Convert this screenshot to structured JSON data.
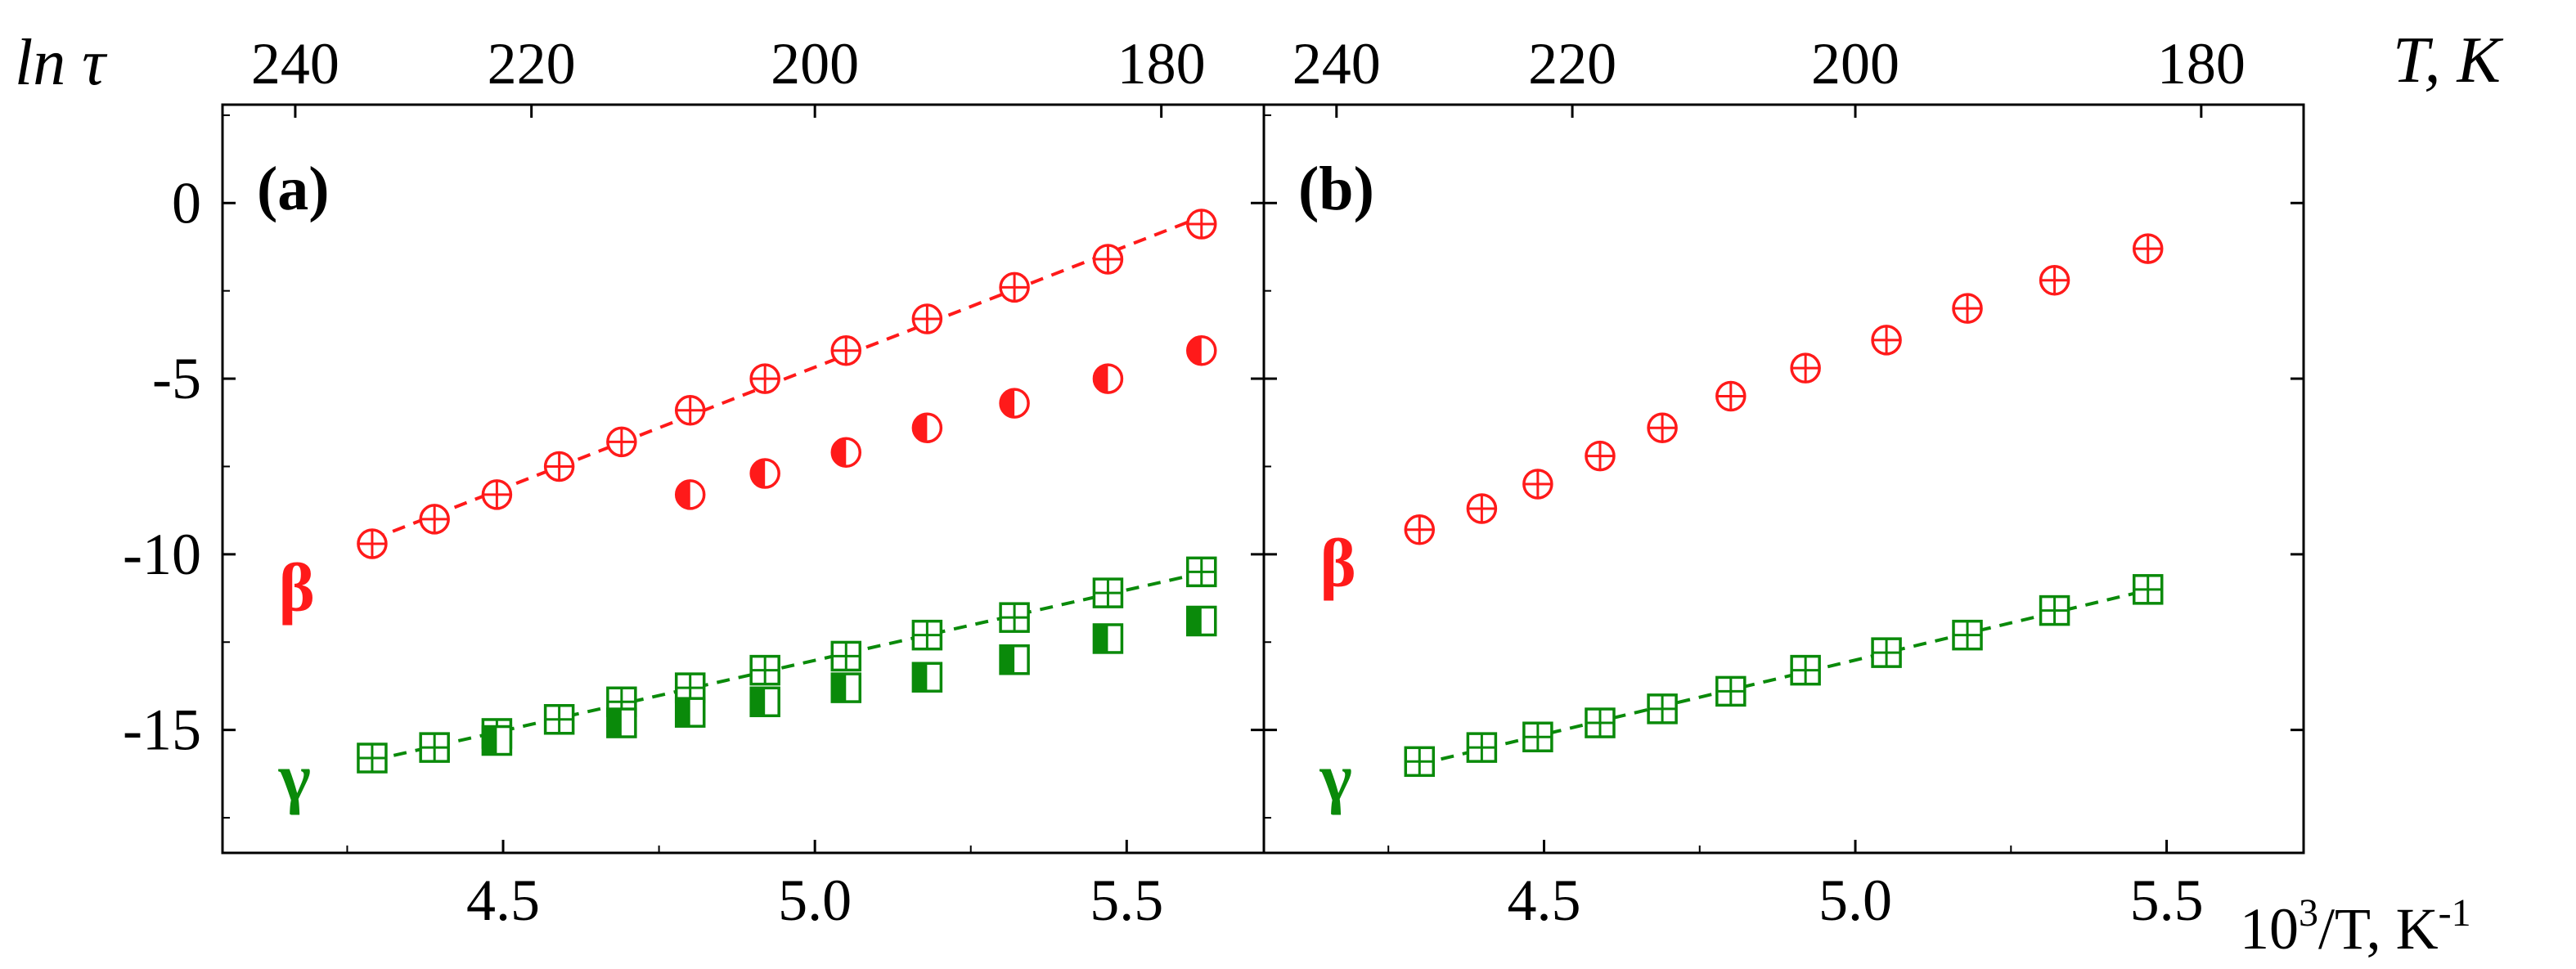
{
  "colors": {
    "beta": "#ff1a1a",
    "gamma": "#0a8a0a",
    "axis": "#000000"
  },
  "y_axis_title": "ln τ",
  "x_axis_title": "10³/T, K⁻¹",
  "x_axis_title_parts": {
    "base": "10",
    "sup": "3",
    "mid": "/T, K",
    "sup2": "-1"
  },
  "top_axis_title": "T, K",
  "chart_data": [
    {
      "type": "scatter",
      "panel_label": "(a)",
      "xlim": [
        4.05,
        5.72
      ],
      "ylim": [
        -18.5,
        2.8
      ],
      "x_ticks": [
        4.5,
        5.0,
        5.5
      ],
      "x_tick_labels": [
        "4.5",
        "5.0",
        "5.5"
      ],
      "y_ticks": [
        0,
        -5,
        -10,
        -15
      ],
      "y_tick_labels": [
        "0",
        "-5",
        "-10",
        "-15"
      ],
      "top_ticks": [
        240,
        220,
        200,
        180
      ],
      "top_tick_labels": [
        "240",
        "220",
        "200",
        "180"
      ],
      "series_labels": [
        {
          "text": "β",
          "color": "#ff1a1a",
          "x": 4.14,
          "y": -11.6
        },
        {
          "text": "γ",
          "color": "#0a8a0a",
          "x": 4.14,
          "y": -17.0
        }
      ],
      "series": [
        {
          "name": "β (crossed circles)",
          "marker": "circle-cross",
          "color": "#ff1a1a",
          "x": [
            4.29,
            4.39,
            4.49,
            4.59,
            4.69,
            4.8,
            4.92,
            5.05,
            5.18,
            5.32,
            5.47,
            5.62
          ],
          "y": [
            -9.7,
            -9.0,
            -8.3,
            -7.5,
            -6.8,
            -5.9,
            -5.0,
            -4.2,
            -3.3,
            -2.4,
            -1.6,
            -0.6
          ],
          "fit": true
        },
        {
          "name": "β (half-filled circles)",
          "marker": "circle-half",
          "color": "#ff1a1a",
          "x": [
            4.8,
            4.92,
            5.05,
            5.18,
            5.32,
            5.47,
            5.62
          ],
          "y": [
            -8.3,
            -7.7,
            -7.1,
            -6.4,
            -5.7,
            -5.0,
            -4.2
          ]
        },
        {
          "name": "γ (crossed squares)",
          "marker": "square-cross",
          "color": "#0a8a0a",
          "x": [
            4.29,
            4.39,
            4.49,
            4.59,
            4.69,
            4.8,
            4.92,
            5.05,
            5.18,
            5.32,
            5.47,
            5.62
          ],
          "y": [
            -15.8,
            -15.5,
            -15.1,
            -14.7,
            -14.2,
            -13.8,
            -13.3,
            -12.9,
            -12.3,
            -11.8,
            -11.1,
            -10.5
          ],
          "fit": true
        },
        {
          "name": "γ (half-filled squares)",
          "marker": "square-half",
          "color": "#0a8a0a",
          "x": [
            4.49,
            4.69,
            4.8,
            4.92,
            5.05,
            5.18,
            5.32,
            5.47,
            5.62
          ],
          "y": [
            -15.3,
            -14.8,
            -14.5,
            -14.2,
            -13.8,
            -13.5,
            -13.0,
            -12.4,
            -11.9
          ]
        }
      ]
    },
    {
      "type": "scatter",
      "panel_label": "(b)",
      "xlim": [
        4.05,
        5.72
      ],
      "ylim": [
        -18.5,
        2.8
      ],
      "x_ticks": [
        4.5,
        5.0,
        5.5
      ],
      "x_tick_labels": [
        "4.5",
        "5.0",
        "5.5"
      ],
      "y_ticks": [
        0,
        -5,
        -10,
        -15
      ],
      "y_tick_labels": [],
      "top_ticks": [
        240,
        220,
        200,
        180
      ],
      "top_tick_labels": [
        "240",
        "220",
        "200",
        "180"
      ],
      "series_labels": [
        {
          "text": "β",
          "color": "#ff1a1a",
          "x": 4.14,
          "y": -10.9
        },
        {
          "text": "γ",
          "color": "#0a8a0a",
          "x": 4.14,
          "y": -17.0
        }
      ],
      "series": [
        {
          "name": "β (crossed circles)",
          "marker": "circle-cross",
          "color": "#ff1a1a",
          "x": [
            4.3,
            4.4,
            4.49,
            4.59,
            4.69,
            4.8,
            4.92,
            5.05,
            5.18,
            5.32,
            5.47
          ],
          "y": [
            -9.3,
            -8.7,
            -8.0,
            -7.2,
            -6.4,
            -5.5,
            -4.7,
            -3.9,
            -3.0,
            -2.2,
            -1.3
          ]
        },
        {
          "name": "γ (crossed squares)",
          "marker": "square-cross",
          "color": "#0a8a0a",
          "x": [
            4.3,
            4.4,
            4.49,
            4.59,
            4.69,
            4.8,
            4.92,
            5.05,
            5.18,
            5.32,
            5.47
          ],
          "y": [
            -15.9,
            -15.5,
            -15.2,
            -14.8,
            -14.4,
            -13.9,
            -13.3,
            -12.8,
            -12.3,
            -11.6,
            -11.0
          ],
          "fit": true
        }
      ]
    }
  ]
}
